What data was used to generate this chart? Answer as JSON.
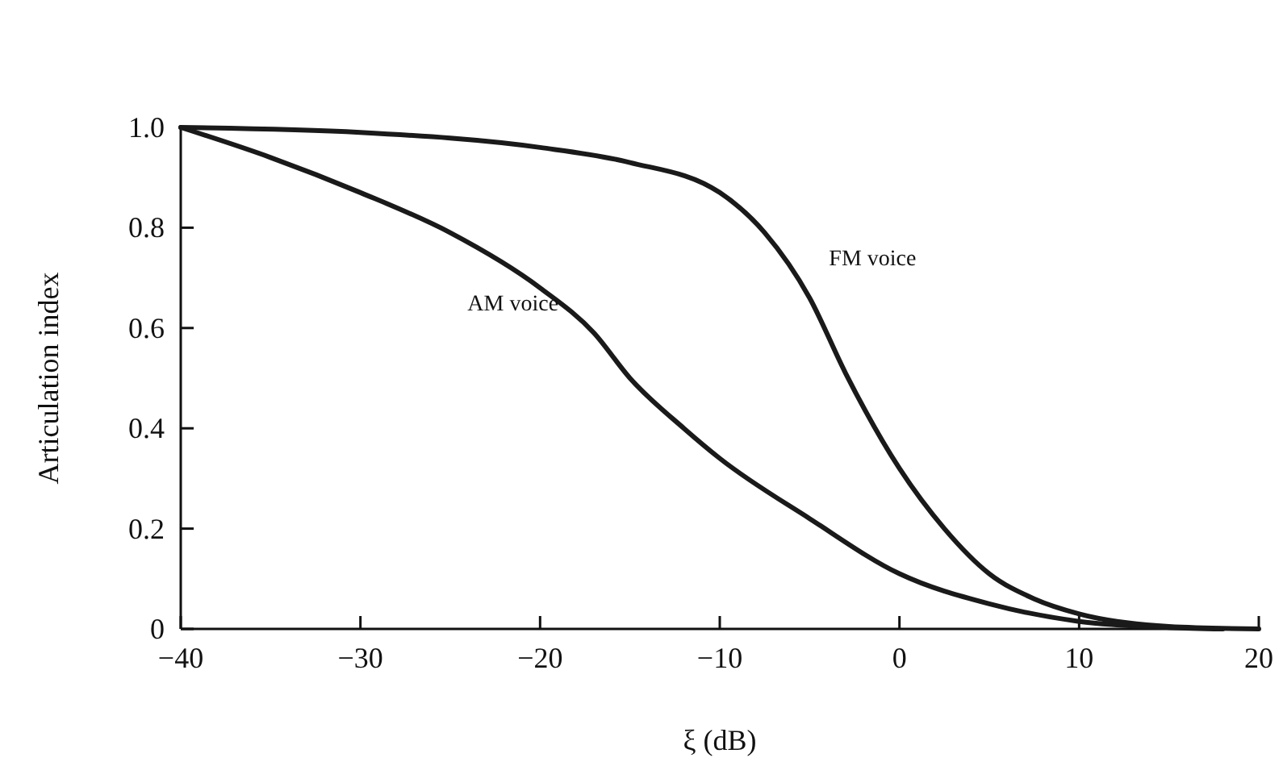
{
  "chart_data": {
    "type": "line",
    "xlabel": "ξ (dB)",
    "ylabel": "Articulation index",
    "xlim": [
      -40,
      20
    ],
    "ylim": [
      0,
      1
    ],
    "xticks": [
      {
        "value": -40,
        "label": "−40"
      },
      {
        "value": -30,
        "label": "−30"
      },
      {
        "value": -20,
        "label": "−20"
      },
      {
        "value": -10,
        "label": "−10"
      },
      0,
      10,
      20
    ],
    "yticks": [
      0,
      {
        "value": 0.2,
        "label": "0.2"
      },
      {
        "value": 0.4,
        "label": "0.4"
      },
      {
        "value": 0.6,
        "label": "0.6"
      },
      {
        "value": 0.8,
        "label": "0.8"
      },
      {
        "value": 1,
        "label": "1.0"
      }
    ],
    "grid": false,
    "line_style": "solid",
    "marker": "none",
    "series": [
      {
        "name": "AM voice",
        "color": "#1a1a1a",
        "x": [
          -40,
          -35,
          -30,
          -25,
          -20,
          -17,
          -15,
          -12,
          -10,
          -5,
          0,
          5,
          10,
          15,
          18
        ],
        "values": [
          1.0,
          0.94,
          0.87,
          0.79,
          0.68,
          0.59,
          0.5,
          0.4,
          0.34,
          0.22,
          0.11,
          0.05,
          0.015,
          0.003,
          0
        ]
      },
      {
        "name": "FM voice",
        "color": "#1a1a1a",
        "x": [
          -40,
          -30,
          -20,
          -15,
          -10,
          -7.5,
          -5,
          -3,
          0,
          2.5,
          5,
          7.5,
          10,
          15,
          20
        ],
        "values": [
          1.0,
          0.99,
          0.96,
          0.93,
          0.87,
          0.79,
          0.66,
          0.51,
          0.32,
          0.2,
          0.11,
          0.06,
          0.03,
          0.005,
          0
        ]
      }
    ]
  }
}
